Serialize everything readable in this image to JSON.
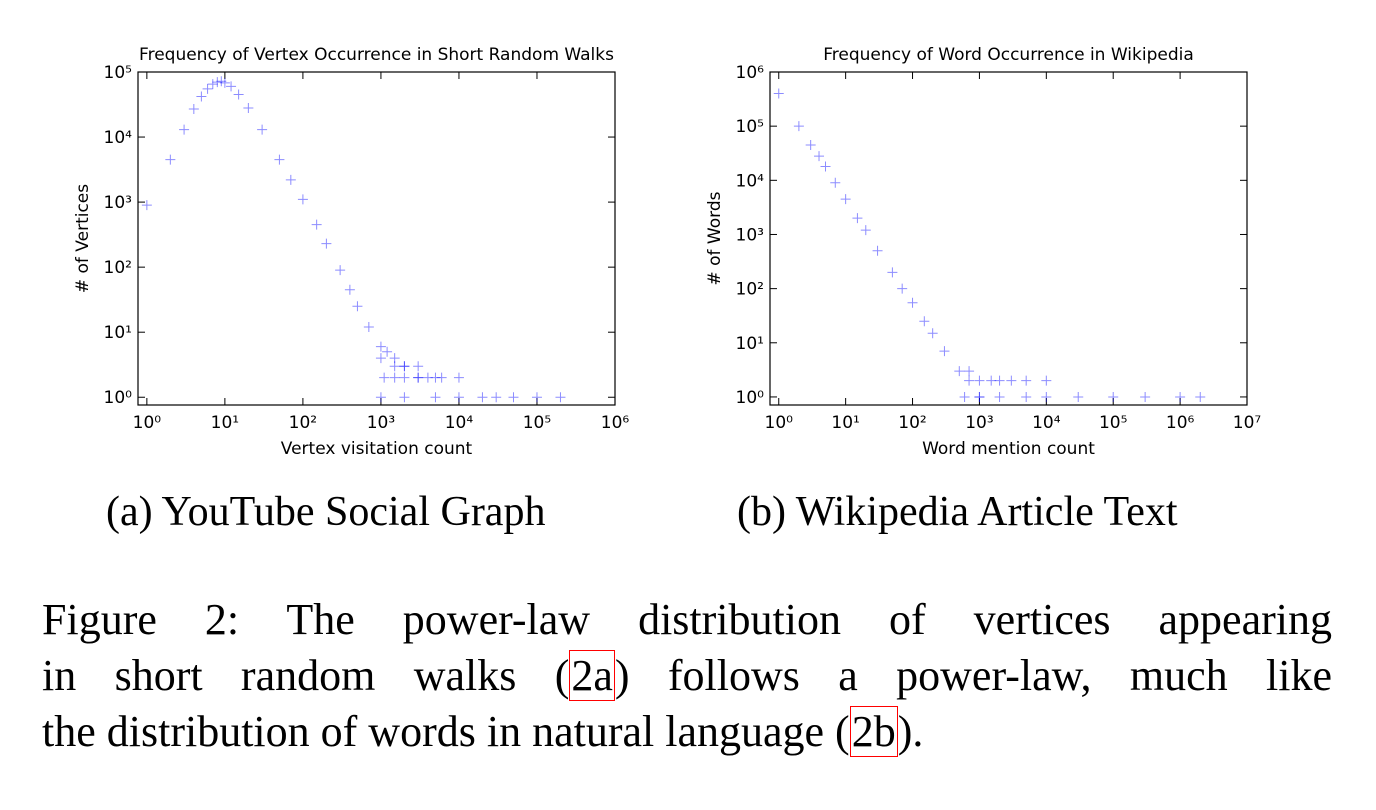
{
  "chart_data": [
    {
      "type": "scatter",
      "title": "Frequency of Vertex Occurrence in Short Random Walks",
      "x_label": "Vertex visitation count",
      "y_label": "# of Vertices",
      "log_x": true,
      "log_y": true,
      "color": "#0000ff",
      "xlim": [
        0.77,
        1000000
      ],
      "ylim": [
        0.76,
        100000
      ],
      "xticks": [
        {
          "value": 1,
          "label": "10⁰"
        },
        {
          "value": 10,
          "label": "10¹"
        },
        {
          "value": 100,
          "label": "10²"
        },
        {
          "value": 1000,
          "label": "10³"
        },
        {
          "value": 10000,
          "label": "10⁴"
        },
        {
          "value": 100000,
          "label": "10⁵"
        },
        {
          "value": 1000000,
          "label": "10⁶"
        }
      ],
      "yticks": [
        {
          "value": 1,
          "label": "10⁰"
        },
        {
          "value": 10,
          "label": "10¹"
        },
        {
          "value": 100,
          "label": "10²"
        },
        {
          "value": 1000,
          "label": "10³"
        },
        {
          "value": 10000,
          "label": "10⁴"
        },
        {
          "value": 100000,
          "label": "10⁵"
        }
      ],
      "x": [
        1,
        2,
        3,
        4,
        5,
        6,
        7,
        8,
        9,
        10,
        12,
        15,
        20,
        30,
        50,
        70,
        100,
        150,
        200,
        300,
        400,
        500,
        700,
        1000,
        1200,
        1500,
        2000,
        3000,
        1000,
        1500,
        2000,
        3000,
        5000,
        1100,
        1500,
        2000,
        3000,
        4000,
        6000,
        10000,
        1000,
        2000,
        5000,
        10000,
        20000,
        30000,
        50000,
        100000,
        200000
      ],
      "values": [
        900,
        4500,
        13000,
        27000,
        42000,
        55000,
        65000,
        70000,
        72000,
        68000,
        60000,
        45000,
        28000,
        13000,
        4500,
        2200,
        1100,
        450,
        230,
        90,
        45,
        25,
        12,
        6,
        5,
        4,
        3,
        3,
        4,
        3,
        3,
        2,
        2,
        2,
        2,
        2,
        2,
        2,
        2,
        2,
        1,
        1,
        1,
        1,
        1,
        1,
        1,
        1,
        1
      ]
    },
    {
      "type": "scatter",
      "title": "Frequency of Word Occurrence in Wikipedia",
      "x_label": "Word mention count",
      "y_label": "# of Words",
      "log_x": true,
      "log_y": true,
      "color": "#0000ff",
      "xlim": [
        0.74,
        10000000
      ],
      "ylim": [
        0.71,
        1000000
      ],
      "xticks": [
        {
          "value": 1,
          "label": "10⁰"
        },
        {
          "value": 10,
          "label": "10¹"
        },
        {
          "value": 100,
          "label": "10²"
        },
        {
          "value": 1000,
          "label": "10³"
        },
        {
          "value": 10000,
          "label": "10⁴"
        },
        {
          "value": 100000,
          "label": "10⁵"
        },
        {
          "value": 1000000,
          "label": "10⁶"
        },
        {
          "value": 10000000,
          "label": "10⁷"
        }
      ],
      "yticks": [
        {
          "value": 1,
          "label": "10⁰"
        },
        {
          "value": 10,
          "label": "10¹"
        },
        {
          "value": 100,
          "label": "10²"
        },
        {
          "value": 1000,
          "label": "10³"
        },
        {
          "value": 10000,
          "label": "10⁴"
        },
        {
          "value": 100000,
          "label": "10⁵"
        },
        {
          "value": 1000000,
          "label": "10⁶"
        }
      ],
      "x": [
        1,
        2,
        3,
        4,
        5,
        7,
        10,
        15,
        20,
        30,
        50,
        70,
        100,
        150,
        200,
        300,
        500,
        700,
        1000,
        700,
        1000,
        1500,
        2000,
        3000,
        5000,
        10000,
        600,
        1000,
        2000,
        5000,
        10000,
        30000,
        100000,
        300000,
        1000000,
        2000000
      ],
      "values": [
        400000,
        100000,
        45000,
        28000,
        18000,
        9000,
        4500,
        2000,
        1200,
        500,
        200,
        100,
        55,
        25,
        15,
        7,
        3,
        2,
        1,
        3,
        2,
        2,
        2,
        2,
        2,
        2,
        1,
        1,
        1,
        1,
        1,
        1,
        1,
        1,
        1,
        1
      ]
    }
  ],
  "subcaptions": [
    "(a) YouTube Social Graph",
    "(b) Wikipedia Article Text"
  ],
  "caption": {
    "line1": "Figure 2: The power-law distribution of vertices appearing",
    "line2_before": "in short random walks (",
    "ref_a": "2a",
    "line2_after": ") follows a power-law, much like",
    "line3_before": "the distribution of words in natural language (",
    "ref_b": "2b",
    "line3_after": ")."
  }
}
